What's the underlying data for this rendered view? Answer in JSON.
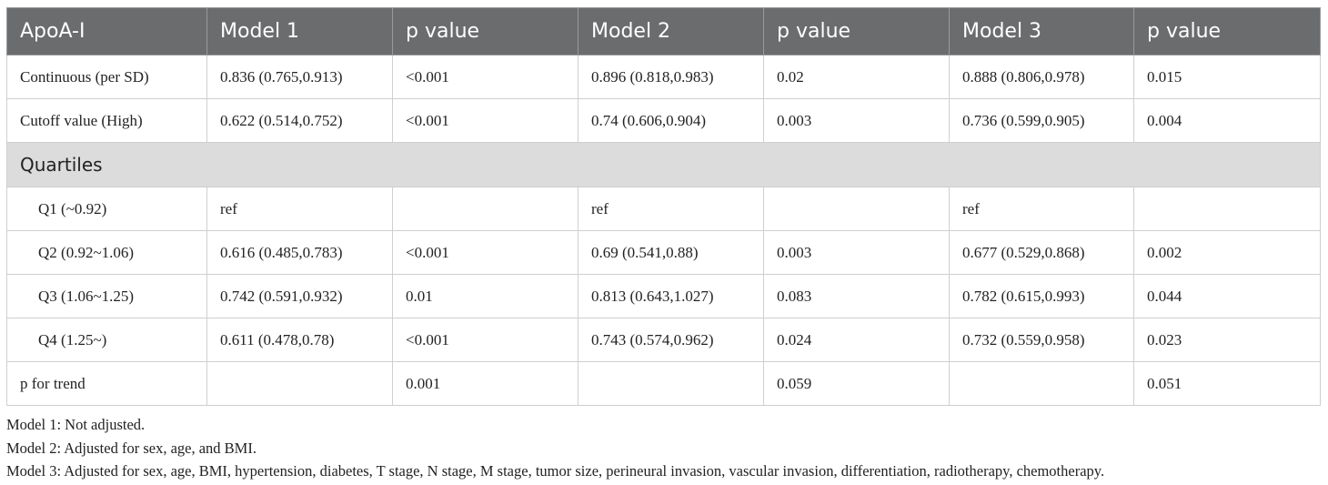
{
  "table": {
    "header": [
      "ApoA-I",
      "Model 1",
      "p value",
      "Model 2",
      "p value",
      "Model 3",
      "p value"
    ],
    "rows_top": [
      [
        "Continuous (per SD)",
        "0.836 (0.765,0.913)",
        "<0.001",
        "0.896 (0.818,0.983)",
        "0.02",
        "0.888 (0.806,0.978)",
        "0.015"
      ],
      [
        "Cutoff value (High)",
        "0.622 (0.514,0.752)",
        "<0.001",
        "0.74 (0.606,0.904)",
        "0.003",
        "0.736 (0.599,0.905)",
        "0.004"
      ]
    ],
    "section": {
      "title": "Quartiles",
      "rows": [
        [
          "Q1 (~0.92)",
          "ref",
          null,
          "ref",
          null,
          "ref",
          null
        ],
        [
          "Q2 (0.92~1.06)",
          "0.616 (0.485,0.783)",
          "<0.001",
          "0.69 (0.541,0.88)",
          "0.003",
          "0.677 (0.529,0.868)",
          "0.002"
        ],
        [
          "Q3 (1.06~1.25)",
          "0.742 (0.591,0.932)",
          "0.01",
          "0.813 (0.643,1.027)",
          "0.083",
          "0.782 (0.615,0.993)",
          "0.044"
        ],
        [
          "Q4 (1.25~)",
          "0.611 (0.478,0.78)",
          "<0.001",
          "0.743 (0.574,0.962)",
          "0.024",
          "0.732 (0.559,0.958)",
          "0.023"
        ]
      ]
    },
    "rows_bottom": [
      [
        "p for trend",
        null,
        "0.001",
        null,
        "0.059",
        null,
        "0.051"
      ]
    ]
  },
  "notes": [
    "Model 1: Not adjusted.",
    "Model 2: Adjusted for sex, age, and BMI.",
    "Model 3: Adjusted for sex, age, BMI, hypertension, diabetes, T stage, N stage, M stage, tumor size, perineural invasion, vascular invasion, differentiation, radiotherapy, chemotherapy."
  ]
}
